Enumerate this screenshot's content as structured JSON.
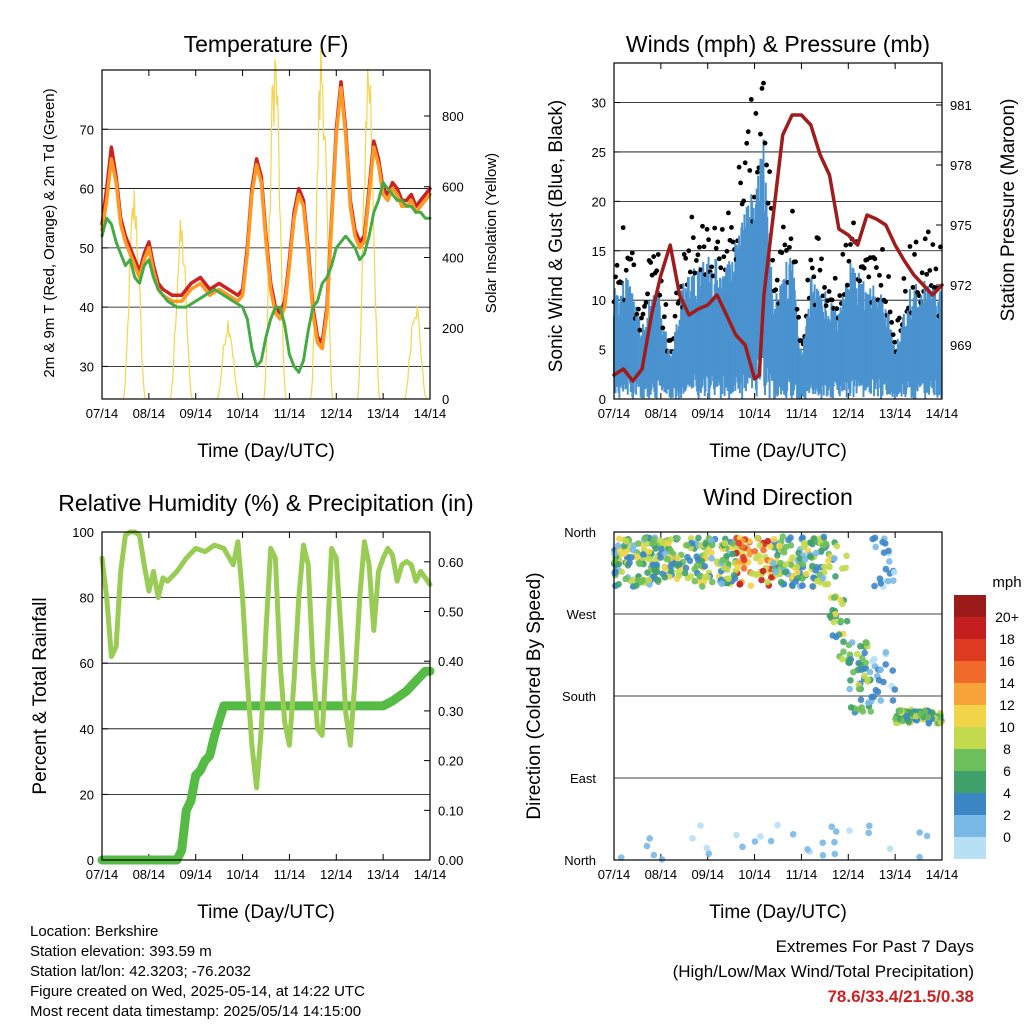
{
  "chart_data": [
    {
      "type": "line",
      "title": "Temperature (F)",
      "xlabel": "Time (Day/UTC)",
      "ylabel": "2m & 9m T (Red, Orange) & 2m Td (Green)",
      "y2label": "Solar Insolation (Yellow)",
      "x_ticks": [
        "07/14",
        "08/14",
        "09/14",
        "10/14",
        "11/14",
        "12/14",
        "13/14",
        "14/14"
      ],
      "y_ticks": [
        30,
        40,
        50,
        60,
        70
      ],
      "y2_ticks": [
        0,
        200,
        400,
        600,
        800
      ],
      "ylim": [
        24.5,
        80
      ],
      "y2lim": [
        0,
        930
      ],
      "xlim": [
        0,
        7
      ],
      "series": [
        {
          "color": "#cc2222",
          "x": [
            0,
            0.1,
            0.2,
            0.3,
            0.4,
            0.5,
            0.6,
            0.7,
            0.8,
            0.9,
            1.0,
            1.1,
            1.2,
            1.3,
            1.5,
            1.7,
            1.9,
            2.1,
            2.2,
            2.3,
            2.5,
            2.7,
            2.9,
            3.0,
            3.1,
            3.2,
            3.3,
            3.4,
            3.5,
            3.6,
            3.7,
            3.8,
            3.9,
            4.0,
            4.1,
            4.2,
            4.3,
            4.4,
            4.5,
            4.6,
            4.7,
            4.8,
            4.9,
            5.0,
            5.1,
            5.2,
            5.3,
            5.4,
            5.5,
            5.6,
            5.7,
            5.8,
            5.9,
            6.0,
            6.1,
            6.2,
            6.3,
            6.4,
            6.5,
            6.6,
            6.7,
            6.8,
            6.9,
            7.0
          ],
          "y": [
            54,
            60,
            67,
            62,
            55,
            52,
            50,
            48,
            46,
            49,
            51,
            47,
            44,
            43,
            42,
            42,
            44,
            45,
            44,
            43,
            44,
            43,
            42,
            43,
            50,
            60,
            65,
            62,
            52,
            44,
            40,
            39,
            41,
            48,
            56,
            60,
            58,
            50,
            40,
            35,
            34,
            40,
            55,
            70,
            78,
            70,
            58,
            53,
            51,
            52,
            60,
            68,
            65,
            60,
            59,
            61,
            60,
            58,
            58,
            59,
            57,
            58,
            59,
            60
          ]
        },
        {
          "color": "#ff9922",
          "x": [
            0,
            0.1,
            0.2,
            0.3,
            0.4,
            0.5,
            0.6,
            0.7,
            0.8,
            0.9,
            1.0,
            1.1,
            1.2,
            1.3,
            1.5,
            1.7,
            1.9,
            2.1,
            2.2,
            2.3,
            2.5,
            2.7,
            2.9,
            3.0,
            3.1,
            3.2,
            3.3,
            3.4,
            3.5,
            3.6,
            3.7,
            3.8,
            3.9,
            4.0,
            4.1,
            4.2,
            4.3,
            4.4,
            4.5,
            4.6,
            4.7,
            4.8,
            4.9,
            5.0,
            5.1,
            5.2,
            5.3,
            5.4,
            5.5,
            5.6,
            5.7,
            5.8,
            5.9,
            6.0,
            6.1,
            6.2,
            6.3,
            6.4,
            6.5,
            6.6,
            6.7,
            6.8,
            6.9,
            7.0
          ],
          "y": [
            53,
            58,
            65,
            61,
            54,
            51,
            49,
            47,
            45,
            48,
            50,
            46,
            43,
            42,
            41,
            41,
            43,
            44,
            43,
            42,
            43,
            42,
            41,
            42,
            49,
            59,
            64,
            61,
            51,
            43,
            39,
            38,
            40,
            47,
            55,
            59,
            57,
            49,
            39,
            34,
            33,
            39,
            54,
            69,
            77,
            69,
            57,
            52,
            50,
            51,
            59,
            67,
            64,
            59,
            58,
            60,
            59,
            57,
            57,
            58,
            56,
            57,
            58,
            59
          ]
        },
        {
          "color": "#44aa44",
          "x": [
            0,
            0.1,
            0.2,
            0.3,
            0.4,
            0.5,
            0.6,
            0.7,
            0.8,
            0.9,
            1.0,
            1.1,
            1.2,
            1.4,
            1.6,
            1.8,
            2.0,
            2.2,
            2.4,
            2.6,
            2.8,
            3.0,
            3.1,
            3.2,
            3.3,
            3.4,
            3.5,
            3.6,
            3.7,
            3.8,
            3.9,
            4.0,
            4.1,
            4.2,
            4.3,
            4.4,
            4.5,
            4.6,
            4.7,
            4.8,
            4.9,
            5.0,
            5.1,
            5.2,
            5.3,
            5.4,
            5.5,
            5.6,
            5.7,
            5.8,
            5.9,
            6.0,
            6.1,
            6.2,
            6.3,
            6.4,
            6.5,
            6.6,
            6.7,
            6.8,
            6.9,
            7.0
          ],
          "y": [
            52,
            55,
            54,
            51,
            49,
            47,
            48,
            45,
            44,
            47,
            48,
            45,
            43,
            41,
            40,
            40,
            41,
            42,
            43,
            42,
            41,
            40,
            38,
            33,
            30,
            31,
            35,
            38,
            40,
            40,
            37,
            32,
            30,
            29,
            31,
            36,
            40,
            41,
            44,
            45,
            47,
            50,
            51,
            52,
            51,
            50,
            48,
            49,
            52,
            56,
            58,
            61,
            60,
            59,
            58,
            58,
            57,
            57,
            56,
            56,
            55,
            55
          ]
        }
      ],
      "insolation": {
        "color": "#f5d550",
        "note_days": [
          0,
          1,
          2,
          3,
          4,
          5,
          6
        ]
      }
    },
    {
      "type": "line",
      "title": "Winds (mph) & Pressure (mb)",
      "xlabel": "Time (Day/UTC)",
      "ylabel": "Sonic Wind & Gust (Blue, Black)",
      "y2label": "Station Pressure (Maroon)",
      "x_ticks": [
        "07/14",
        "08/14",
        "09/14",
        "10/14",
        "11/14",
        "12/14",
        "13/14",
        "14/14"
      ],
      "y_ticks": [
        0,
        5,
        10,
        15,
        20,
        25,
        30
      ],
      "y2_ticks": [
        969,
        972,
        975,
        978,
        981
      ],
      "ylim": [
        0,
        34
      ],
      "y2lim": [
        966.3,
        983.1
      ],
      "xlim": [
        0,
        7
      ],
      "series": [
        {
          "name": "",
          "color": "#a01c1c",
          "axis": "right",
          "x": [
            0,
            0.2,
            0.4,
            0.6,
            0.8,
            1.0,
            1.2,
            1.4,
            1.6,
            1.8,
            2.0,
            2.2,
            2.4,
            2.6,
            2.8,
            3.0,
            3.1,
            3.2,
            3.4,
            3.6,
            3.8,
            4.0,
            4.2,
            4.4,
            4.6,
            4.8,
            5.0,
            5.2,
            5.4,
            5.6,
            5.8,
            6.0,
            6.2,
            6.4,
            6.6,
            6.8,
            7.0
          ],
          "y": [
            967.5,
            967.8,
            967.2,
            967.8,
            970.5,
            972.5,
            974.0,
            971.5,
            970.5,
            970.8,
            971.0,
            971.5,
            970.5,
            969.5,
            969.0,
            967.3,
            967.5,
            971.5,
            975.5,
            979.5,
            980.5,
            980.5,
            980.0,
            978.5,
            977.5,
            974.8,
            974.5,
            974.0,
            975.5,
            975.3,
            975.0,
            974.0,
            973.2,
            972.5,
            972.0,
            971.5,
            972.0
          ]
        }
      ]
    },
    {
      "type": "line",
      "title": "Relative Humidity (%) & Precipitation (in)",
      "xlabel": "Time (Day/UTC)",
      "ylabel": "Percent & Total Rainfall",
      "x_ticks": [
        "07/14",
        "08/14",
        "09/14",
        "10/14",
        "11/14",
        "12/14",
        "13/14",
        "14/14"
      ],
      "y_ticks": [
        0,
        20,
        40,
        60,
        80,
        100
      ],
      "y2_ticks": [
        "0.00",
        "0.10",
        "0.20",
        "0.30",
        "0.40",
        "0.50",
        "0.60"
      ],
      "ylim": [
        0,
        100
      ],
      "y2lim": [
        0,
        0.66
      ],
      "xlim": [
        0,
        7
      ],
      "series": [
        {
          "color": "#99cc55",
          "x": [
            0,
            0.1,
            0.2,
            0.3,
            0.4,
            0.5,
            0.6,
            0.7,
            0.8,
            0.9,
            1.0,
            1.1,
            1.2,
            1.3,
            1.4,
            1.6,
            1.8,
            2.0,
            2.2,
            2.4,
            2.6,
            2.8,
            2.9,
            3.0,
            3.1,
            3.2,
            3.3,
            3.4,
            3.5,
            3.6,
            3.7,
            3.8,
            3.9,
            4.0,
            4.1,
            4.2,
            4.3,
            4.4,
            4.5,
            4.6,
            4.7,
            4.8,
            4.9,
            5.0,
            5.1,
            5.2,
            5.3,
            5.4,
            5.5,
            5.6,
            5.7,
            5.8,
            5.9,
            6.0,
            6.1,
            6.2,
            6.3,
            6.4,
            6.5,
            6.6,
            6.7,
            6.8,
            6.9,
            7.0
          ],
          "y": [
            92,
            80,
            62,
            65,
            88,
            99,
            100,
            100,
            99,
            90,
            82,
            88,
            80,
            86,
            85,
            88,
            92,
            95,
            94,
            96,
            95,
            90,
            97,
            80,
            55,
            35,
            22,
            40,
            70,
            95,
            92,
            60,
            42,
            35,
            55,
            80,
            96,
            90,
            60,
            40,
            38,
            65,
            95,
            92,
            70,
            45,
            35,
            55,
            80,
            97,
            90,
            70,
            88,
            92,
            95,
            93,
            85,
            90,
            91,
            90,
            85,
            88,
            86,
            84
          ]
        },
        {
          "color": "#55bb44",
          "axis": "right",
          "x": [
            0,
            1.6,
            1.7,
            1.8,
            1.9,
            2.0,
            2.1,
            2.2,
            2.3,
            2.4,
            2.5,
            2.6,
            2.8,
            6.0,
            6.2,
            6.5,
            6.7,
            6.9,
            7.0
          ],
          "y": [
            0,
            0,
            0.02,
            0.1,
            0.12,
            0.17,
            0.18,
            0.2,
            0.21,
            0.25,
            0.28,
            0.31,
            0.31,
            0.31,
            0.32,
            0.34,
            0.36,
            0.38,
            0.38
          ]
        }
      ]
    },
    {
      "type": "scatter",
      "title": "Wind Direction",
      "xlabel": "Time (Day/UTC)",
      "ylabel": "Direction (Colored By Speed)",
      "x_ticks": [
        "07/14",
        "08/14",
        "09/14",
        "10/14",
        "11/14",
        "12/14",
        "13/14",
        "14/14"
      ],
      "y_ticks": [
        "North",
        "East",
        "South",
        "West",
        "North"
      ],
      "colorbar_title": "mph",
      "colorbar_labels": [
        "20+",
        "18",
        "16",
        "14",
        "12",
        "10",
        "8",
        "6",
        "4",
        "2",
        "0"
      ],
      "colorbar_colors": [
        "#9b1b1b",
        "#c41e1e",
        "#de3a22",
        "#f06a2c",
        "#f7a33a",
        "#f2d44a",
        "#c3d94e",
        "#6cbf5a",
        "#3fa06a",
        "#3d86c5",
        "#79b8e6",
        "#b7e0f5"
      ],
      "xlim": [
        0,
        7
      ]
    }
  ],
  "info": {
    "location": "Location: Berkshire",
    "elevation": "Station elevation: 393.59 m",
    "latlon": "Station lat/lon: 42.3203; -76.2032",
    "created": "Figure created on Wed, 2025-05-14, at 14:22 UTC",
    "recent": "Most recent data timestamp: 2025/05/14 14:15:00"
  },
  "extremes": {
    "title": "Extremes For Past 7 Days",
    "subtitle": "(High/Low/Max Wind/Total Precipitation)",
    "values": "78.6/33.4/21.5/0.38"
  }
}
